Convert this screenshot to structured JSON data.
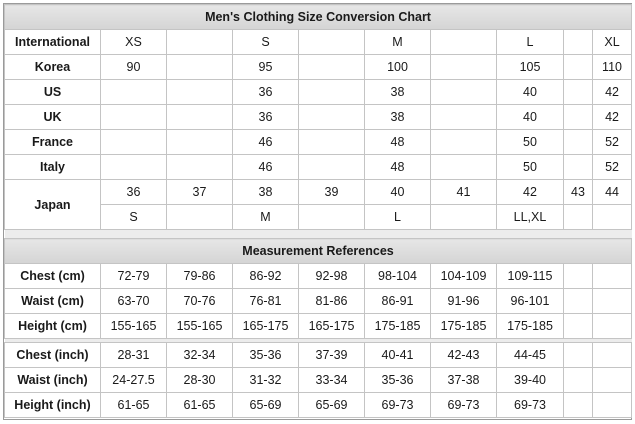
{
  "title": "Men's Clothing Size Conversion Chart",
  "size_rows": [
    {
      "label": "International",
      "cells": [
        "XS",
        "",
        "S",
        "",
        "M",
        "",
        "L",
        "",
        "XL"
      ]
    },
    {
      "label": "Korea",
      "cells": [
        "90",
        "",
        "95",
        "",
        "100",
        "",
        "105",
        "",
        "110"
      ]
    },
    {
      "label": "US",
      "cells": [
        "",
        "",
        "36",
        "",
        "38",
        "",
        "40",
        "",
        "42"
      ]
    },
    {
      "label": "UK",
      "cells": [
        "",
        "",
        "36",
        "",
        "38",
        "",
        "40",
        "",
        "42"
      ]
    },
    {
      "label": "France",
      "cells": [
        "",
        "",
        "46",
        "",
        "48",
        "",
        "50",
        "",
        "52"
      ]
    },
    {
      "label": "Italy",
      "cells": [
        "",
        "",
        "46",
        "",
        "48",
        "",
        "50",
        "",
        "52"
      ]
    }
  ],
  "japan": {
    "label": "Japan",
    "numbers": [
      "36",
      "37",
      "38",
      "39",
      "40",
      "41",
      "42",
      "43",
      "44"
    ],
    "letters": [
      "S",
      "",
      "M",
      "",
      "L",
      "",
      "LL,XL",
      "",
      ""
    ]
  },
  "measurement_title": "Measurement References",
  "cm_rows": [
    {
      "label": "Chest (cm)",
      "cells": [
        "72-79",
        "79-86",
        "86-92",
        "92-98",
        "98-104",
        "104-109",
        "109-115",
        "",
        ""
      ]
    },
    {
      "label": "Waist (cm)",
      "cells": [
        "63-70",
        "70-76",
        "76-81",
        "81-86",
        "86-91",
        "91-96",
        "96-101",
        "",
        ""
      ]
    },
    {
      "label": "Height (cm)",
      "cells": [
        "155-165",
        "155-165",
        "165-175",
        "165-175",
        "175-185",
        "175-185",
        "175-185",
        "",
        ""
      ]
    }
  ],
  "inch_rows": [
    {
      "label": "Chest (inch)",
      "cells": [
        "28-31",
        "32-34",
        "35-36",
        "37-39",
        "40-41",
        "42-43",
        "44-45",
        "",
        ""
      ]
    },
    {
      "label": "Waist (inch)",
      "cells": [
        "24-27.5",
        "28-30",
        "31-32",
        "33-34",
        "35-36",
        "37-38",
        "39-40",
        "",
        ""
      ]
    },
    {
      "label": "Height (inch)",
      "cells": [
        "61-65",
        "61-65",
        "65-69",
        "65-69",
        "69-73",
        "69-73",
        "69-73",
        "",
        ""
      ]
    }
  ]
}
